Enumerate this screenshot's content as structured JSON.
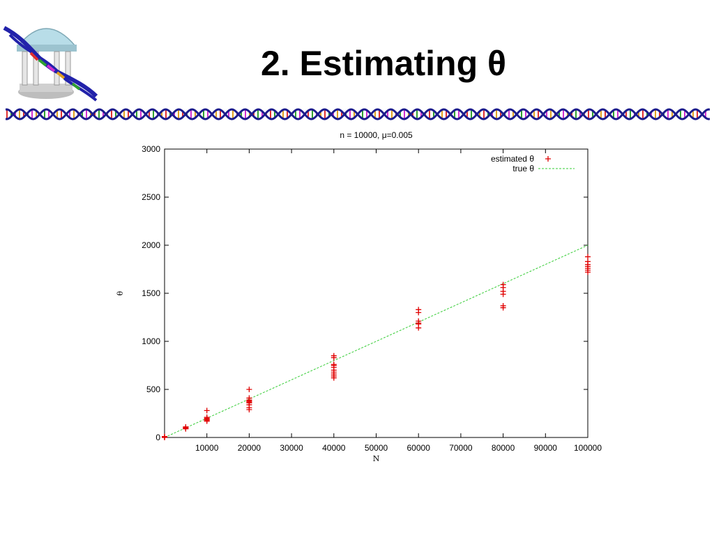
{
  "slide": {
    "title": "2. Estimating θ",
    "logo": "unc-old-well-dna-logo",
    "border": "dna-helix-border-icon"
  },
  "chart_data": {
    "type": "scatter",
    "title": "n = 10000, μ=0.005",
    "xlabel": "N",
    "ylabel": "θ",
    "xlim": [
      0,
      100000
    ],
    "ylim": [
      0,
      3000
    ],
    "xticks": [
      10000,
      20000,
      30000,
      40000,
      50000,
      60000,
      70000,
      80000,
      90000,
      100000
    ],
    "yticks": [
      0,
      500,
      1000,
      1500,
      2000,
      2500,
      3000
    ],
    "grid": false,
    "legend_position": "top-right",
    "series": [
      {
        "name": "estimated θ",
        "marker": "+",
        "color": "#e00000",
        "points": [
          [
            0,
            10
          ],
          [
            0,
            0
          ],
          [
            0,
            5
          ],
          [
            5000,
            95
          ],
          [
            5000,
            110
          ],
          [
            5000,
            100
          ],
          [
            5000,
            90
          ],
          [
            10000,
            280
          ],
          [
            10000,
            200
          ],
          [
            10000,
            190
          ],
          [
            10000,
            185
          ],
          [
            10000,
            175
          ],
          [
            10000,
            210
          ],
          [
            10000,
            170
          ],
          [
            20000,
            500
          ],
          [
            20000,
            410
          ],
          [
            20000,
            390
          ],
          [
            20000,
            380
          ],
          [
            20000,
            370
          ],
          [
            20000,
            360
          ],
          [
            20000,
            340
          ],
          [
            20000,
            310
          ],
          [
            20000,
            290
          ],
          [
            40000,
            850
          ],
          [
            40000,
            830
          ],
          [
            40000,
            760
          ],
          [
            40000,
            750
          ],
          [
            40000,
            730
          ],
          [
            40000,
            700
          ],
          [
            40000,
            680
          ],
          [
            40000,
            660
          ],
          [
            40000,
            640
          ],
          [
            40000,
            620
          ],
          [
            60000,
            1330
          ],
          [
            60000,
            1300
          ],
          [
            60000,
            1210
          ],
          [
            60000,
            1190
          ],
          [
            60000,
            1180
          ],
          [
            60000,
            1140
          ],
          [
            80000,
            1590
          ],
          [
            80000,
            1560
          ],
          [
            80000,
            1520
          ],
          [
            80000,
            1490
          ],
          [
            80000,
            1370
          ],
          [
            80000,
            1350
          ],
          [
            100000,
            1880
          ],
          [
            100000,
            1830
          ],
          [
            100000,
            1800
          ],
          [
            100000,
            1780
          ],
          [
            100000,
            1760
          ],
          [
            100000,
            1740
          ],
          [
            100000,
            1720
          ]
        ]
      },
      {
        "name": "true θ",
        "type": "line",
        "style": "dashed",
        "color": "#33cc33",
        "points": [
          [
            0,
            0
          ],
          [
            100000,
            2000
          ]
        ]
      }
    ]
  }
}
